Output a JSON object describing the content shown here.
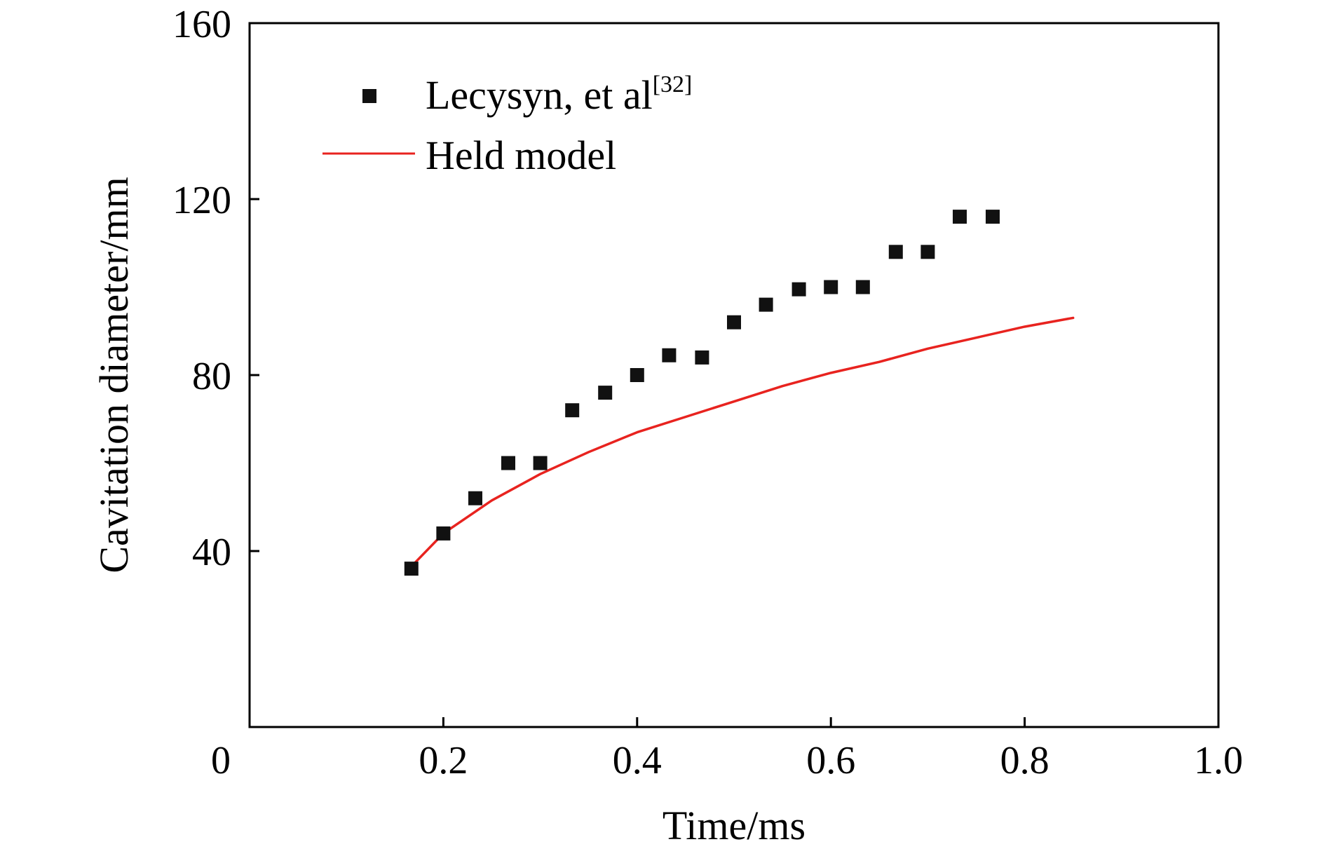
{
  "chart_data": {
    "type": "scatter",
    "title": "",
    "xlabel": "Time/ms",
    "ylabel": "Cavitation diameter/mm",
    "xlim": [
      0,
      1.0
    ],
    "ylim": [
      0,
      160
    ],
    "x_ticks": [
      "0",
      "0.2",
      "0.4",
      "0.6",
      "0.8",
      "1.0"
    ],
    "x_tick_values": [
      0,
      0.2,
      0.4,
      0.6,
      0.8,
      1.0
    ],
    "y_ticks": [
      "40",
      "80",
      "120",
      "160"
    ],
    "y_tick_values": [
      40,
      80,
      120,
      160
    ],
    "grid": false,
    "legend_position": "top-left",
    "series": [
      {
        "name": "Lecysyn, et al",
        "name_superscript": "[32]",
        "style": "markers",
        "marker": "square",
        "color": "#111111",
        "x": [
          0.167,
          0.2,
          0.233,
          0.267,
          0.3,
          0.333,
          0.367,
          0.4,
          0.433,
          0.467,
          0.5,
          0.533,
          0.567,
          0.6,
          0.633,
          0.667,
          0.7,
          0.733,
          0.767
        ],
        "y": [
          36,
          44,
          52,
          60,
          60,
          72,
          76,
          80,
          84.5,
          84,
          92,
          96,
          99.5,
          100,
          100,
          108,
          108,
          116,
          116
        ]
      },
      {
        "name": "Held model",
        "style": "line",
        "color": "#e8231f",
        "x": [
          0.167,
          0.2,
          0.25,
          0.3,
          0.35,
          0.4,
          0.45,
          0.5,
          0.55,
          0.6,
          0.65,
          0.7,
          0.75,
          0.8,
          0.85
        ],
        "y": [
          36.5,
          44,
          51.5,
          57.5,
          62.5,
          67,
          70.5,
          74,
          77.5,
          80.5,
          83,
          86,
          88.5,
          91,
          93
        ]
      }
    ]
  }
}
